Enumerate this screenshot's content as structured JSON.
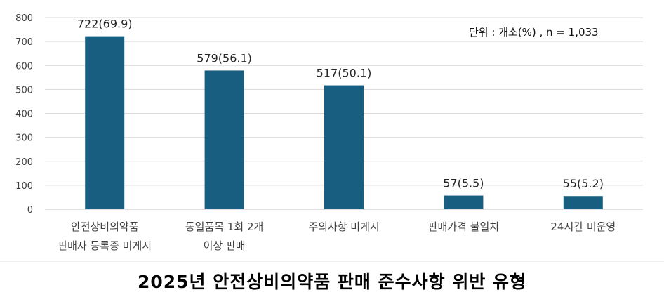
{
  "title": "2025년 안전상비의약품 판매 준수사항 위반 유형",
  "unit_note": "단위 : 개소(%) , n = 1,033",
  "colors": {
    "bar": "#175e80",
    "grid": "#d9d9d9",
    "axis": "#bfbfbf"
  },
  "chart_data": {
    "type": "bar",
    "title": "2025년 안전상비의약품 판매 준수사항 위반 유형",
    "xlabel": "",
    "ylabel": "",
    "ylim": [
      0,
      800
    ],
    "yticks": [
      0,
      100,
      200,
      300,
      400,
      500,
      600,
      700,
      800
    ],
    "grid": true,
    "categories": [
      [
        "안전상비의약품",
        "판매자 등록증 미게시"
      ],
      [
        "동일품목 1회 2개",
        "이상 판매"
      ],
      [
        "주의사항 미게시"
      ],
      [
        "판매가격 불일치"
      ],
      [
        "24시간 미운영"
      ]
    ],
    "values": [
      722,
      579,
      517,
      57,
      55
    ],
    "percents": [
      69.9,
      56.1,
      50.1,
      5.5,
      5.2
    ],
    "data_labels": [
      "722(69.9)",
      "579(56.1)",
      "517(50.1)",
      "57(5.5)",
      "55(5.2)"
    ]
  }
}
